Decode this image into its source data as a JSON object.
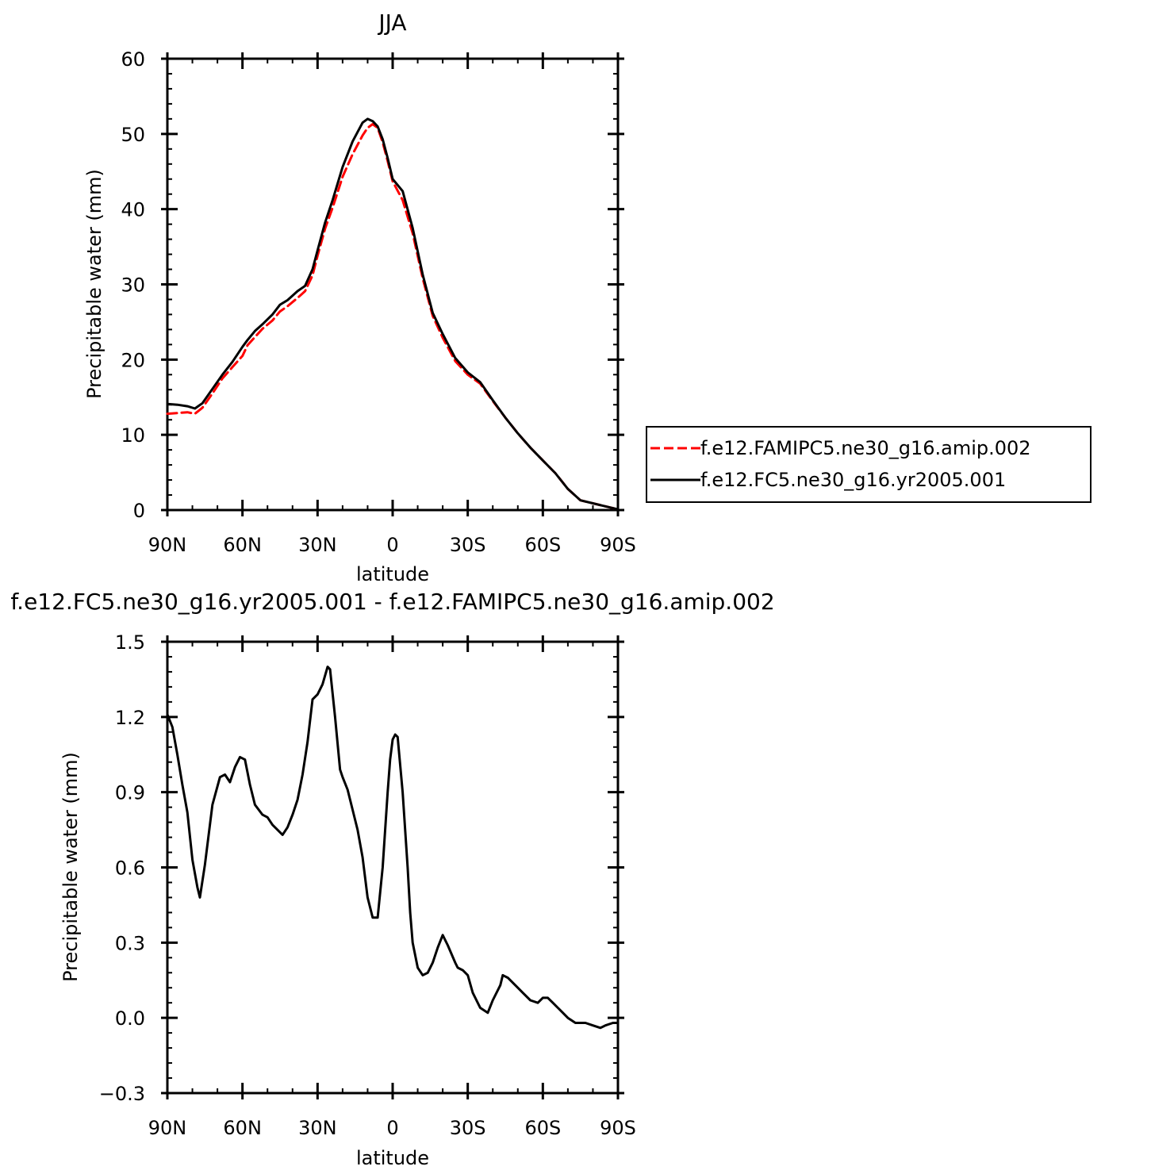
{
  "chart_data": [
    {
      "type": "line",
      "title": "JJA",
      "xlabel": "latitude",
      "ylabel": "Precipitable water (mm)",
      "xlim": [
        90,
        -90
      ],
      "ylim": [
        0,
        60
      ],
      "xticks": [
        90,
        60,
        30,
        0,
        -30,
        -60,
        -90
      ],
      "xtick_labels": [
        "90N",
        "60N",
        "30N",
        "0",
        "30S",
        "60S",
        "90S"
      ],
      "yticks": [
        0,
        10,
        20,
        30,
        40,
        50,
        60
      ],
      "ytick_labels": [
        "0",
        "10",
        "20",
        "30",
        "40",
        "50",
        "60"
      ],
      "legend": "right",
      "series": [
        {
          "name": "f.e12.FAMIPC5.ne30_g16.amip.002",
          "color": "#ff0000",
          "dash": "dashed",
          "x": [
            90,
            86,
            82,
            79,
            76,
            72,
            68,
            64,
            60,
            58,
            55,
            52,
            48,
            45,
            42,
            38,
            35,
            32,
            30,
            27,
            24,
            20,
            16,
            12,
            10,
            8,
            6,
            4,
            2,
            0,
            -4,
            -8,
            -12,
            -16,
            -20,
            -25,
            -30,
            -35,
            -40,
            -45,
            -50,
            -55,
            -60,
            -65,
            -70,
            -75,
            -80,
            -85,
            -90
          ],
          "y": [
            12.8,
            12.9,
            13.0,
            12.8,
            13.6,
            15.5,
            17.5,
            19.0,
            20.5,
            21.9,
            23.0,
            24.1,
            25.2,
            26.4,
            27.1,
            28.2,
            29.1,
            31.2,
            33.8,
            37.4,
            40.2,
            44.3,
            47.3,
            49.8,
            50.8,
            51.3,
            50.8,
            48.9,
            46.4,
            43.7,
            41.2,
            36.8,
            30.8,
            25.8,
            22.9,
            19.8,
            18.0,
            16.8,
            14.5,
            12.3,
            10.2,
            8.3,
            6.6,
            4.9,
            2.8,
            1.3,
            0.9,
            0.5,
            0.1
          ]
        },
        {
          "name": "f.e12.FC5.ne30_g16.yr2005.001",
          "color": "#000000",
          "dash": "solid",
          "x": [
            90,
            86,
            82,
            79,
            76,
            72,
            68,
            64,
            60,
            58,
            55,
            52,
            48,
            45,
            42,
            38,
            35,
            32,
            30,
            27,
            24,
            20,
            16,
            12,
            10,
            8,
            6,
            4,
            2,
            0,
            -4,
            -8,
            -12,
            -16,
            -20,
            -25,
            -30,
            -35,
            -40,
            -45,
            -50,
            -55,
            -60,
            -65,
            -70,
            -75,
            -80,
            -85,
            -90
          ],
          "y": [
            14.1,
            14.0,
            13.8,
            13.5,
            14.2,
            16.1,
            18.0,
            19.7,
            21.7,
            22.6,
            23.8,
            24.7,
            26.0,
            27.3,
            27.9,
            29.1,
            29.8,
            32.0,
            34.5,
            38.2,
            41.2,
            45.6,
            49.0,
            51.5,
            52.0,
            51.7,
            51.0,
            49.3,
            46.8,
            44.0,
            42.4,
            37.5,
            31.3,
            26.2,
            23.4,
            20.2,
            18.3,
            17.0,
            14.6,
            12.3,
            10.2,
            8.3,
            6.6,
            4.9,
            2.8,
            1.3,
            0.9,
            0.5,
            0.1
          ]
        }
      ]
    },
    {
      "type": "line",
      "title": "f.e12.FC5.ne30_g16.yr2005.001 - f.e12.FAMIPC5.ne30_g16.amip.002",
      "xlabel": "latitude",
      "ylabel": "Precipitable water (mm)",
      "xlim": [
        90,
        -90
      ],
      "ylim": [
        -0.3,
        1.5
      ],
      "xticks": [
        90,
        60,
        30,
        0,
        -30,
        -60,
        -90
      ],
      "xtick_labels": [
        "90N",
        "60N",
        "30N",
        "0",
        "30S",
        "60S",
        "90S"
      ],
      "yticks": [
        -0.3,
        0.0,
        0.3,
        0.6,
        0.9,
        1.2,
        1.5
      ],
      "ytick_labels": [
        "−0.3",
        "0.0",
        "0.3",
        "0.6",
        "0.9",
        "1.2",
        "1.5"
      ],
      "series": [
        {
          "color": "#000000",
          "dash": "solid",
          "x": [
            90,
            88,
            86,
            84,
            82,
            80,
            78,
            77,
            75,
            72,
            69,
            67,
            65,
            63,
            61,
            59,
            57,
            55,
            52,
            50,
            48,
            46,
            44,
            42,
            40,
            38,
            36,
            34,
            32,
            30,
            28,
            26,
            25,
            23,
            21,
            20,
            18,
            16,
            14,
            12,
            10,
            8,
            6,
            4,
            2,
            1,
            0,
            -1,
            -2,
            -4,
            -6,
            -7,
            -8,
            -10,
            -12,
            -14,
            -16,
            -18,
            -20,
            -22,
            -25,
            -26,
            -28,
            -30,
            -32,
            -35,
            -38,
            -40,
            -43,
            -44,
            -46,
            -50,
            -52,
            -55,
            -58,
            -60,
            -62,
            -64,
            -66,
            -68,
            -70,
            -73,
            -77,
            -80,
            -83,
            -85,
            -88,
            -90
          ],
          "y": [
            1.21,
            1.16,
            1.05,
            0.93,
            0.82,
            0.63,
            0.52,
            0.48,
            0.61,
            0.85,
            0.96,
            0.97,
            0.94,
            1.0,
            1.04,
            1.03,
            0.93,
            0.85,
            0.81,
            0.8,
            0.77,
            0.75,
            0.73,
            0.76,
            0.81,
            0.87,
            0.97,
            1.1,
            1.27,
            1.29,
            1.33,
            1.4,
            1.39,
            1.2,
            0.99,
            0.96,
            0.91,
            0.83,
            0.75,
            0.64,
            0.48,
            0.4,
            0.4,
            0.6,
            0.9,
            1.03,
            1.11,
            1.13,
            1.12,
            0.9,
            0.6,
            0.42,
            0.3,
            0.2,
            0.17,
            0.18,
            0.22,
            0.28,
            0.33,
            0.29,
            0.22,
            0.2,
            0.19,
            0.17,
            0.1,
            0.04,
            0.02,
            0.07,
            0.13,
            0.17,
            0.16,
            0.12,
            0.1,
            0.07,
            0.06,
            0.08,
            0.08,
            0.06,
            0.04,
            0.02,
            0.0,
            -0.02,
            -0.02,
            -0.03,
            -0.04,
            -0.03,
            -0.02,
            -0.02
          ]
        }
      ]
    }
  ]
}
